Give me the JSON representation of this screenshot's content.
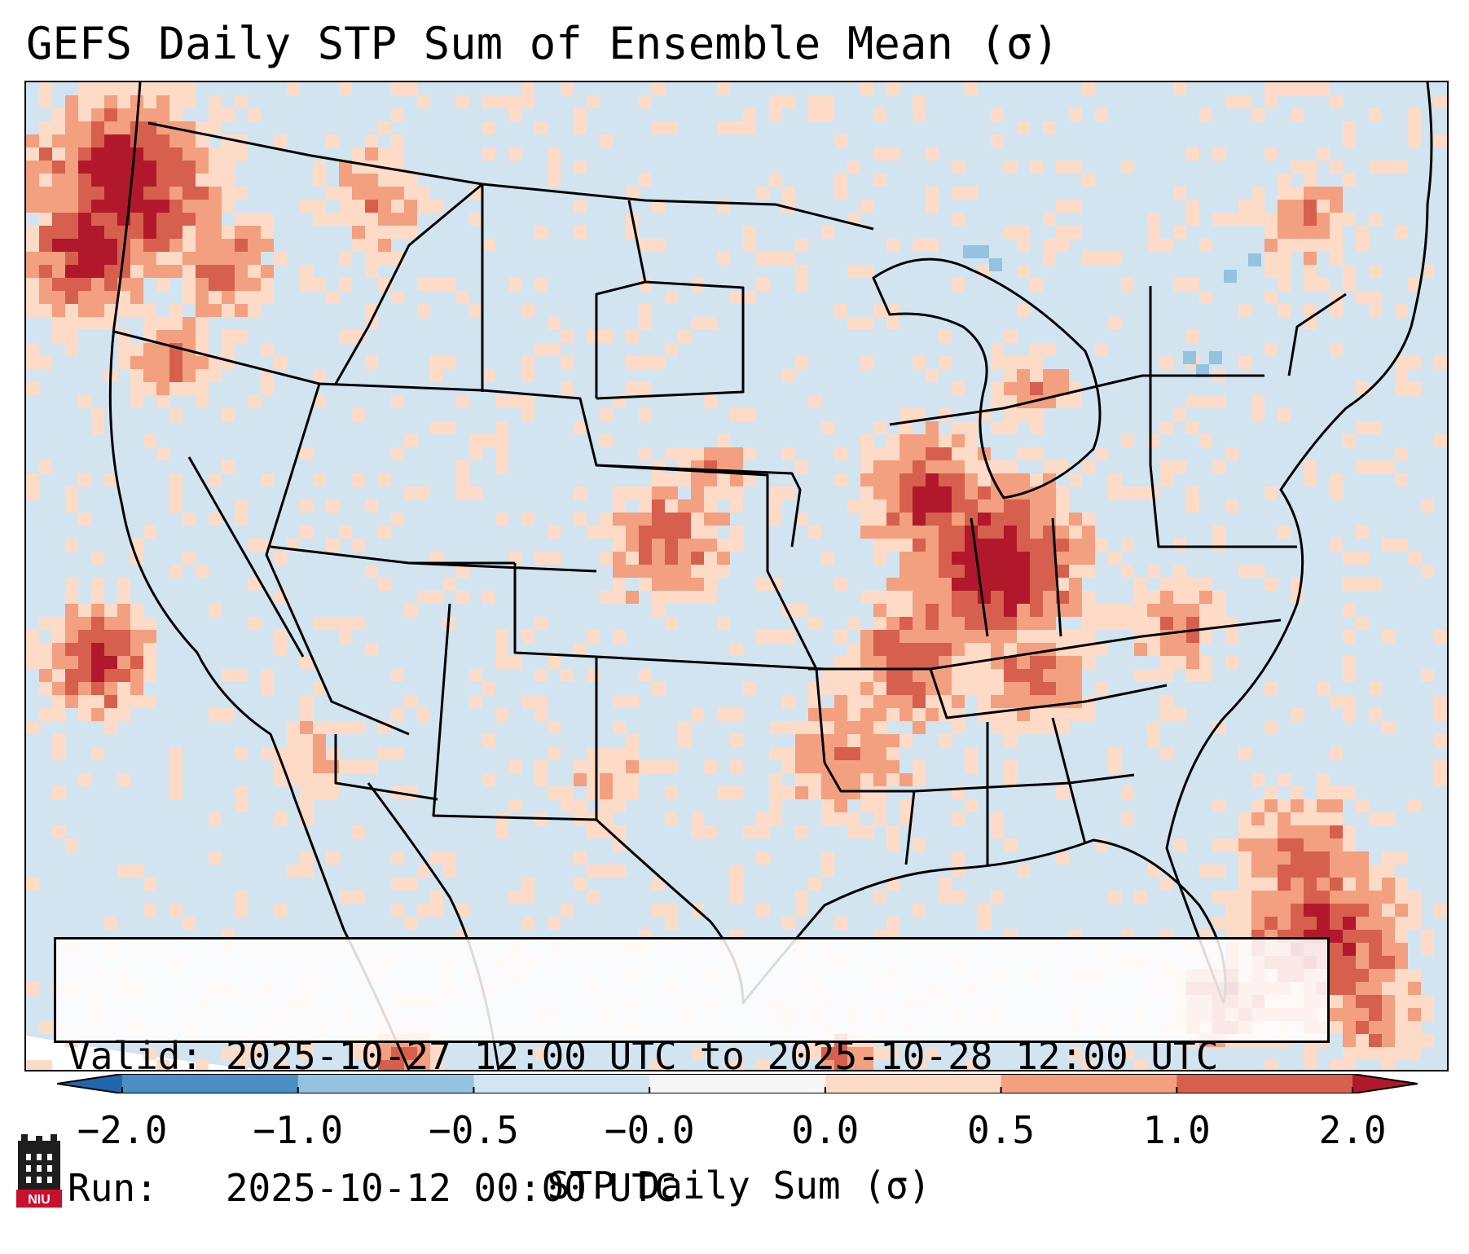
{
  "title": "GEFS Daily STP Sum of Ensemble Mean (σ)",
  "valid_line": "Valid: 2025-10-27 12:00 UTC to 2025-10-28 12:00 UTC",
  "run_line": "Run:   2025-10-12 00:00 UTC",
  "colorbar": {
    "label": "STP Daily Sum (σ)",
    "ticks": [
      "−2.0",
      "−1.0",
      "−0.5",
      "−0.0",
      "0.0",
      "0.5",
      "1.0",
      "2.0"
    ],
    "bins": [
      {
        "from": "−2.0",
        "to": "−1.0",
        "color": "#4a8fc3"
      },
      {
        "from": "−1.0",
        "to": "−0.5",
        "color": "#93c3df"
      },
      {
        "from": "−0.5",
        "to": "−0.0",
        "color": "#d2e5f1"
      },
      {
        "from": "−0.0",
        "to": "0.0",
        "color": "#f7f7f7"
      },
      {
        "from": "0.0",
        "to": "0.5",
        "color": "#fddbc7"
      },
      {
        "from": "0.5",
        "to": "1.0",
        "color": "#f2a07f"
      },
      {
        "from": "1.0",
        "to": "2.0",
        "color": "#d6604d"
      }
    ],
    "under_color": "#2166ac",
    "over_color": "#b2182b"
  },
  "map": {
    "background_color": "#d1e4f0",
    "outline_color": "#000000"
  },
  "logo": {
    "text": "NIU",
    "color": "#c8102e"
  }
}
